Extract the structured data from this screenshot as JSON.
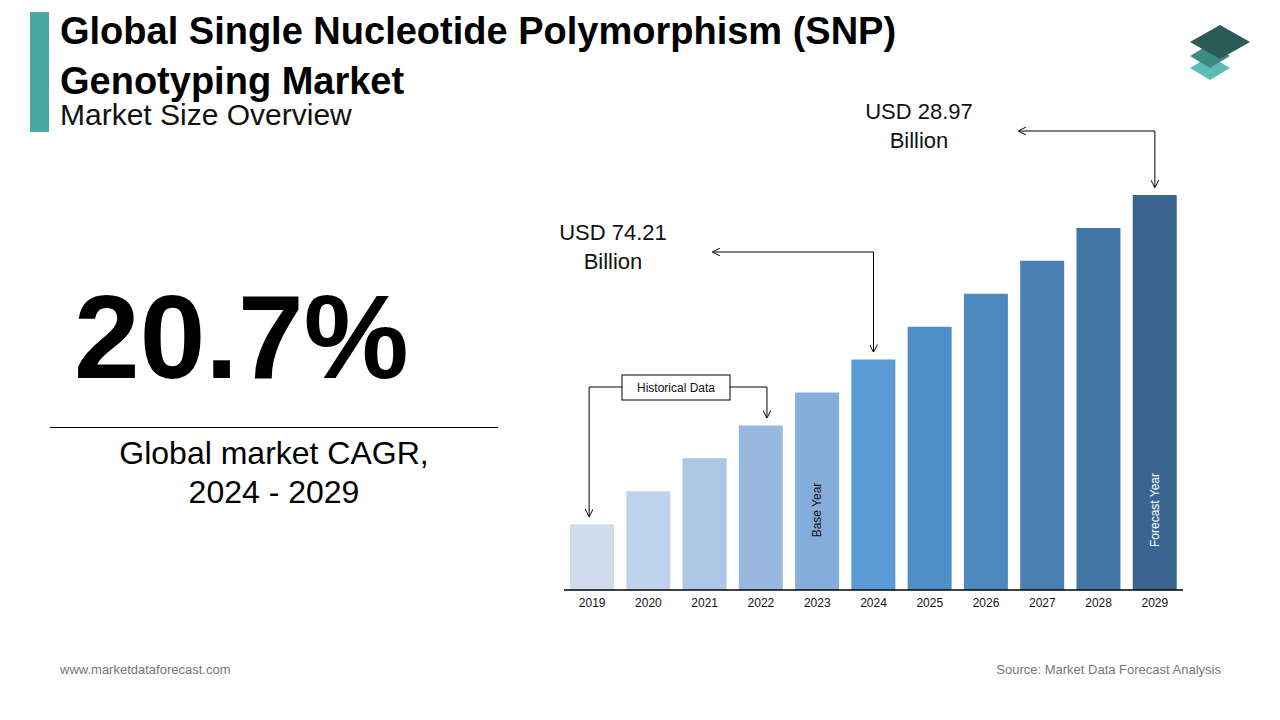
{
  "header": {
    "title_lines": [
      "Global Single Nucleotide Polymorphism (SNP)",
      "Genotyping Market"
    ],
    "subtitle": "Market Size Overview"
  },
  "kpi": {
    "text": "20.7%",
    "caption_lines": [
      "Global market CAGR,",
      "2024 - 2029"
    ]
  },
  "footer": {
    "left": "www.marketdataforecast.com",
    "right": "Source: Market Data Forecast Analysis"
  },
  "chart_data": {
    "type": "bar",
    "categories": [
      "2019",
      "2020",
      "2021",
      "2022",
      "2023",
      "2024",
      "2025",
      "2026",
      "2027",
      "2028",
      "2029"
    ],
    "values": [
      2,
      3,
      4,
      5,
      6,
      7,
      8,
      9,
      10,
      11,
      12
    ],
    "colors": [
      "#d0dcee",
      "#c0d3ec",
      "#adc6e6",
      "#98b8e0",
      "#85addb",
      "#5b9bd5",
      "#4f8ec9",
      "#4d89be",
      "#4a80b4",
      "#4476a5",
      "#3b6591"
    ],
    "ylim": [
      0,
      12
    ],
    "tick_labels": "x",
    "bar_labels": [
      {
        "category": "2023",
        "text": "Base Year"
      },
      {
        "category": "2029",
        "text": "Forecast Year"
      }
    ],
    "annotations": [
      {
        "category": "2024",
        "lines": [
          "USD 74.21",
          "Billion"
        ]
      },
      {
        "category": "2029",
        "lines": [
          "USD 28.97",
          "Billion"
        ]
      }
    ],
    "range_annotation": {
      "text": "Historical Data",
      "from": "2019",
      "to": "2022"
    }
  }
}
